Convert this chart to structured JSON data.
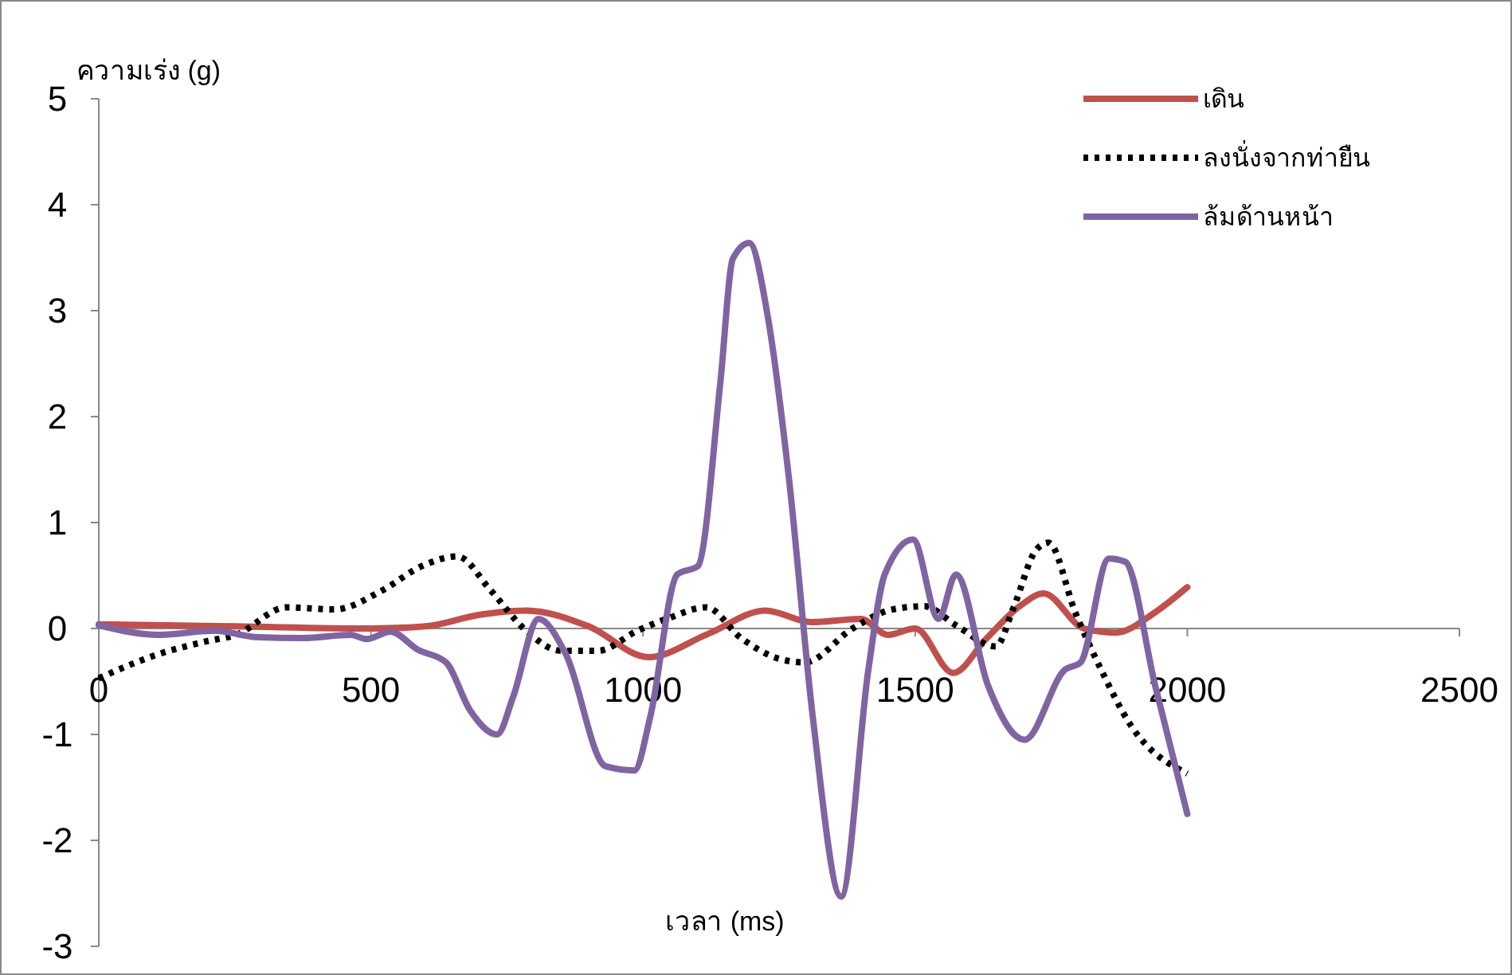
{
  "chart_data": {
    "type": "line",
    "xlabel": "เวลา (ms)",
    "ylabel": "ความเร่ง (g)",
    "xlim": [
      0,
      2500
    ],
    "xticks": [
      0,
      500,
      1000,
      1500,
      2000,
      2500
    ],
    "ylim": [
      -3,
      5
    ],
    "yticks": [
      -3,
      -2,
      -1,
      0,
      1,
      2,
      3,
      4,
      5
    ],
    "grid": false,
    "legend": "top right",
    "marker": "none",
    "series": [
      {
        "name": "เดิน",
        "color": "#c0504d",
        "line_style": "solid",
        "x": [
          0,
          250,
          500,
          600,
          700,
          785,
          900,
          1010,
          1120,
          1225,
          1310,
          1400,
          1450,
          1500,
          1570,
          1630,
          1692,
          1736,
          1810,
          1868,
          1940,
          2000
        ],
        "values": [
          0.04,
          0.02,
          0,
          0.02,
          0.13,
          0.17,
          0.02,
          -0.27,
          -0.05,
          0.17,
          0.06,
          0.09,
          -0.06,
          0,
          -0.42,
          -0.1,
          0.21,
          0.33,
          0,
          -0.04,
          0.15,
          0.39
        ]
      },
      {
        "name": "ลงนั่งจากท่ายืน",
        "color": "#000000",
        "line_style": "dotted",
        "x": [
          0,
          111,
          199,
          252,
          345,
          433,
          521,
          594,
          659,
          720,
          785,
          849,
          917,
          990,
          1048,
          1116,
          1180,
          1253,
          1297,
          1385,
          1458,
          1517,
          1575,
          1648,
          1681,
          1722,
          1745,
          1795,
          1839,
          1897,
          2000
        ],
        "values": [
          -0.47,
          -0.24,
          -0.12,
          -0.06,
          0.2,
          0.18,
          0.36,
          0.59,
          0.68,
          0.36,
          -0.02,
          -0.21,
          -0.21,
          -0.02,
          0.1,
          0.2,
          -0.09,
          -0.29,
          -0.32,
          0,
          0.18,
          0.21,
          0.03,
          -0.17,
          0.2,
          0.74,
          0.81,
          0.14,
          -0.36,
          -0.92,
          -1.37
        ]
      },
      {
        "name": "ล้มด้านหน้า",
        "color": "#8064a2",
        "line_style": "solid",
        "x": [
          0,
          111,
          214,
          287,
          375,
          463,
          492,
          536,
          586,
          638,
          682,
          732,
          761,
          808,
          858,
          931,
          984,
          1013,
          1063,
          1101,
          1142,
          1165,
          1195,
          1230,
          1268,
          1312,
          1364,
          1414,
          1444,
          1496,
          1543,
          1575,
          1634,
          1701,
          1775,
          1804,
          1856,
          1886,
          1941,
          2000
        ],
        "values": [
          0.03,
          -0.06,
          -0.02,
          -0.08,
          -0.09,
          -0.06,
          -0.1,
          -0.03,
          -0.2,
          -0.32,
          -0.77,
          -1.0,
          -0.65,
          0.09,
          -0.24,
          -1.3,
          -1.34,
          -0.84,
          0.51,
          0.59,
          2.32,
          3.49,
          3.64,
          2.92,
          1.42,
          -0.84,
          -2.53,
          -0.39,
          0.51,
          0.84,
          0.09,
          0.51,
          -0.54,
          -1.05,
          -0.39,
          -0.32,
          0.66,
          0.63,
          -0.54,
          -1.75
        ]
      }
    ]
  }
}
